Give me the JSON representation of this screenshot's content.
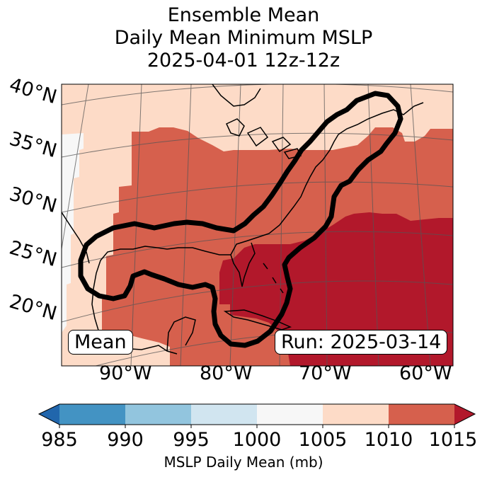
{
  "title": {
    "line1": "Ensemble Mean",
    "line2": "Daily Mean Minimum MSLP",
    "line3": "2025-04-01 12z-12z"
  },
  "map": {
    "lat_labels": [
      "40°N",
      "35°N",
      "30°N",
      "25°N",
      "20°N"
    ],
    "lon_labels": [
      "90°W",
      "80°W",
      "70°W",
      "60°W"
    ],
    "left_box_label": "Mean",
    "right_box_label": "Run: 2025-03-14",
    "fill_colors": {
      "low": "#f7f7f7",
      "light": "#fddbc7",
      "mid": "#d6604d",
      "high": "#b2182b"
    }
  },
  "colorbar": {
    "ticks": [
      "985",
      "990",
      "995",
      "1000",
      "1005",
      "1010",
      "1015"
    ],
    "colors": [
      "#2166ac",
      "#4393c3",
      "#92c5de",
      "#d1e5f0",
      "#f7f7f7",
      "#fddbc7",
      "#d6604d",
      "#b2182b"
    ],
    "label": "MSLP Daily Mean (mb)"
  }
}
